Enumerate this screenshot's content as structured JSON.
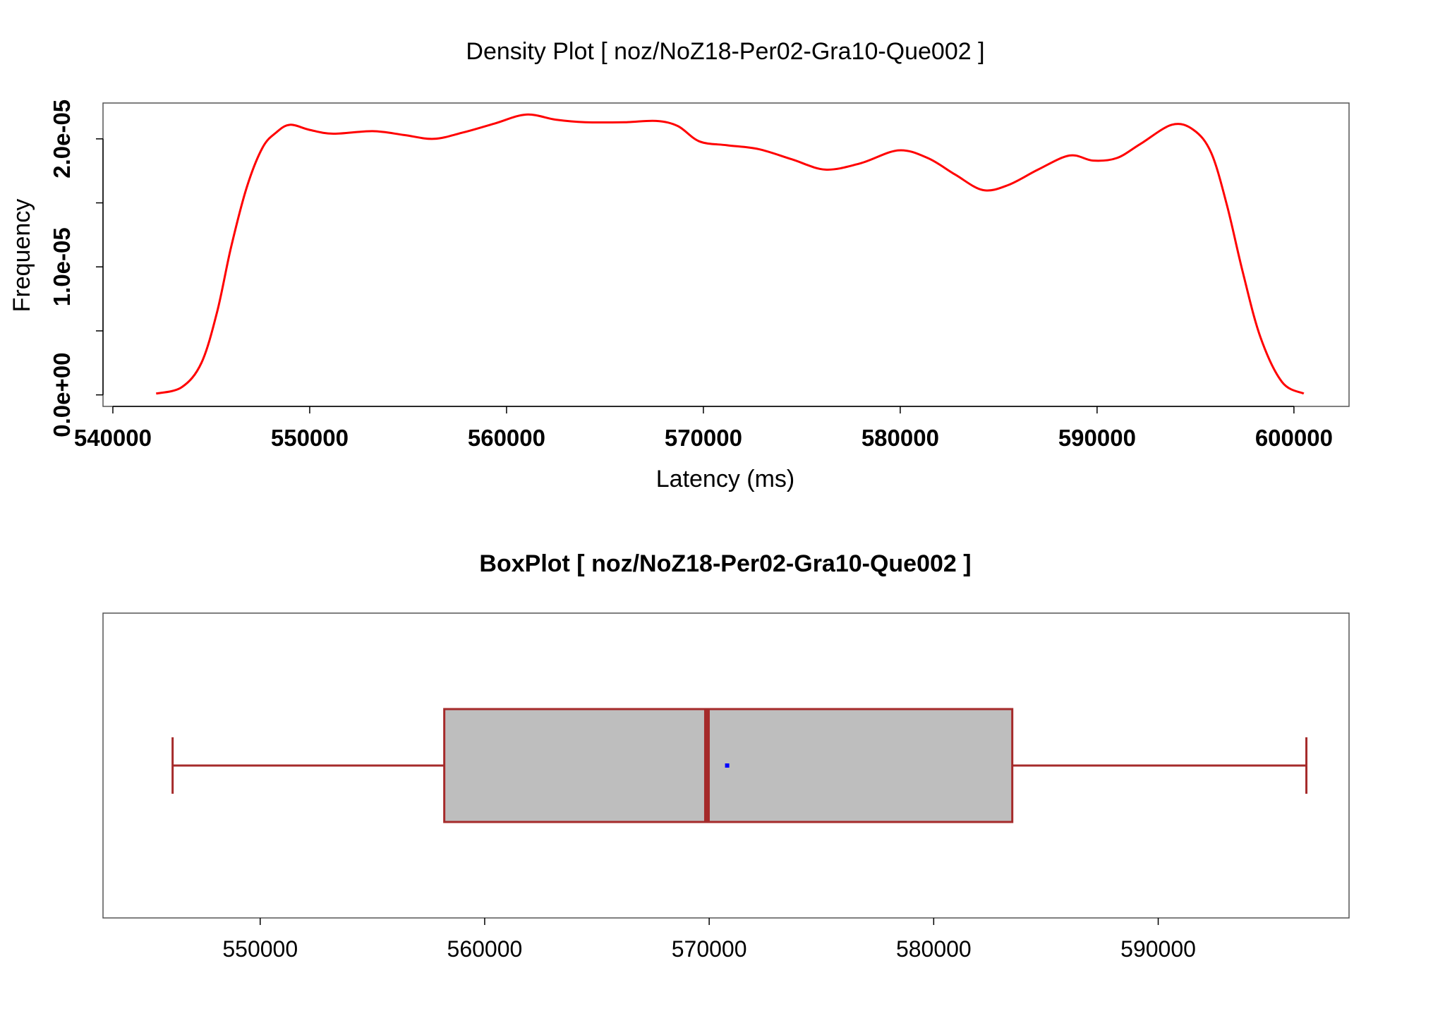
{
  "chart_data": [
    {
      "type": "line",
      "title": "Density Plot [ noz/NoZ18-Per02-Gra10-Que002 ]",
      "xlabel": "Latency (ms)",
      "ylabel": "Frequency",
      "xlim": [
        539500,
        602800
      ],
      "ylim": [
        -9e-07,
        2.28e-05
      ],
      "x_ticks": [
        540000,
        550000,
        560000,
        570000,
        580000,
        590000,
        600000
      ],
      "x_tick_labels": [
        "540000",
        "550000",
        "560000",
        "570000",
        "580000",
        "590000",
        "600000"
      ],
      "y_ticks": [
        0,
        5e-06,
        1e-05,
        1.5e-05,
        2e-05
      ],
      "y_tick_labels": [
        "0.0e+00",
        "",
        "1.0e-05",
        "",
        "2.0e-05"
      ],
      "line_color": "#ff0000",
      "grid": false,
      "series": [
        {
          "x": [
            542200,
            543500,
            544500,
            545300,
            546000,
            546800,
            547600,
            548300,
            549000,
            550000,
            551200,
            553200,
            554800,
            556300,
            557800,
            559400,
            561000,
            562500,
            564000,
            566000,
            567600,
            568700,
            569800,
            571200,
            572800,
            574500,
            576200,
            578000,
            579900,
            581400,
            582800,
            584200,
            585500,
            587000,
            588600,
            589800,
            591000,
            592200,
            593800,
            594900,
            595800,
            596600,
            597400,
            598300,
            599400,
            600500
          ],
          "y": [
            1e-07,
            6e-07,
            2.5e-06,
            6.5e-06,
            1.15e-05,
            1.62e-05,
            1.93e-05,
            2.05e-05,
            2.11e-05,
            2.07e-05,
            2.04e-05,
            2.06e-05,
            2.03e-05,
            2e-05,
            2.05e-05,
            2.12e-05,
            2.19e-05,
            2.15e-05,
            2.13e-05,
            2.13e-05,
            2.14e-05,
            2.1e-05,
            1.98e-05,
            1.95e-05,
            1.92e-05,
            1.84e-05,
            1.76e-05,
            1.81e-05,
            1.91e-05,
            1.85e-05,
            1.72e-05,
            1.6e-05,
            1.64e-05,
            1.76e-05,
            1.87e-05,
            1.83e-05,
            1.85e-05,
            1.96e-05,
            2.11e-05,
            2.07e-05,
            1.89e-05,
            1.48e-05,
            9.6e-06,
            4.5e-06,
            1e-06,
            1e-07
          ]
        }
      ]
    },
    {
      "type": "box",
      "title": "BoxPlot [ noz/NoZ18-Per02-Gra10-Que002 ]",
      "xlim": [
        543000,
        598500
      ],
      "x_ticks": [
        550000,
        560000,
        570000,
        580000,
        590000
      ],
      "x_tick_labels": [
        "550000",
        "560000",
        "570000",
        "580000",
        "590000"
      ],
      "whisker_low": 546100,
      "q1": 558200,
      "median": 569900,
      "mean": 570800,
      "q3": 583500,
      "whisker_high": 596600,
      "box_fill": "#bebebe",
      "box_border": "#a52a2a",
      "mean_color": "#0000ff"
    }
  ]
}
